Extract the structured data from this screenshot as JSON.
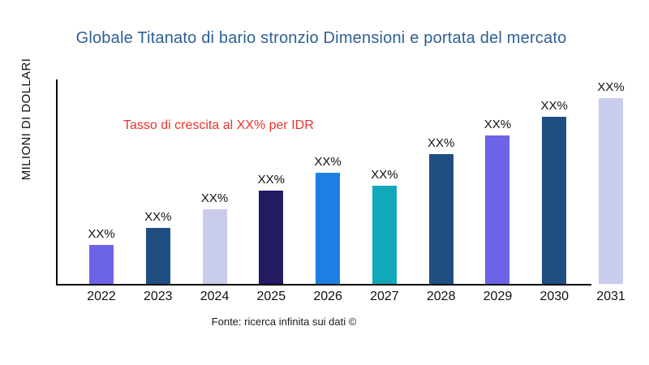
{
  "title": "Globale Titanato di bario stronzio Dimensioni e portata del mercato",
  "y_axis_label": "MILIONI DI DOLLARI",
  "annotation": "Tasso di crescita al XX% per IDR",
  "source": "Fonte: ricerca infinita sui dati ©",
  "colors": {
    "title": "#2E6094",
    "annotation": "#E8342B",
    "axis": "#000000",
    "background": "#ffffff"
  },
  "chart_data": {
    "type": "bar",
    "title": "Globale Titanato di bario stronzio Dimensioni e portata del mercato",
    "xlabel": "",
    "ylabel": "MILIONI DI DOLLARI",
    "categories": [
      "2022",
      "2023",
      "2024",
      "2025",
      "2026",
      "2027",
      "2028",
      "2029",
      "2030",
      "2031"
    ],
    "values": [
      21,
      30,
      40,
      50,
      60,
      53,
      70,
      80,
      90,
      100
    ],
    "values_unit": "relative height, max bar = 100 (numeric values masked as XX% on chart)",
    "bar_labels": [
      "XX%",
      "XX%",
      "XX%",
      "XX%",
      "XX%",
      "XX%",
      "XX%",
      "XX%",
      "XX%",
      "XX%"
    ],
    "bar_colors": [
      "#6C63E8",
      "#1F4E82",
      "#C9CCED",
      "#221C64",
      "#1C80E3",
      "#12A7BB",
      "#1F4E82",
      "#6C63E8",
      "#1F4E82",
      "#C9CCED"
    ],
    "annotation": "Tasso di crescita al XX% per IDR",
    "source": "Fonte: ricerca infinita sui dati ©",
    "legend": false,
    "grid": false,
    "ylim": [
      0,
      110
    ]
  }
}
